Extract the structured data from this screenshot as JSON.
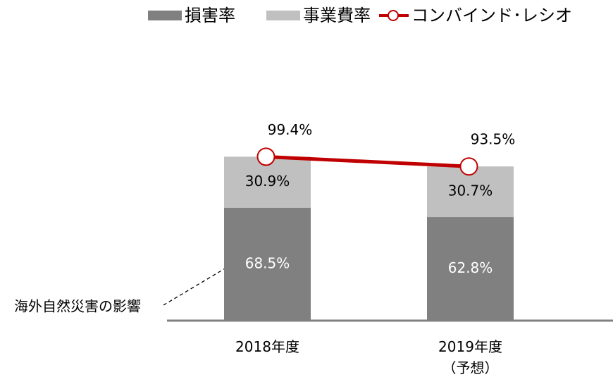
{
  "chart_data": {
    "type": "bar",
    "stacked": true,
    "categories": [
      "2018年度",
      "2019年度\n（予想）"
    ],
    "series": [
      {
        "name": "損害率",
        "color": "#808080",
        "values": [
          68.5,
          62.8
        ],
        "value_labels": [
          "68.5%",
          "62.8%"
        ],
        "label_color": "#ffffff"
      },
      {
        "name": "事業費率",
        "color": "#c0c0c0",
        "values": [
          30.9,
          30.7
        ],
        "value_labels": [
          "30.9%",
          "30.7%"
        ],
        "label_color": "#000000"
      },
      {
        "name": "コンバインド･レシオ",
        "type": "line",
        "color": "#c00000",
        "values": [
          99.4,
          93.5
        ],
        "value_labels": [
          "99.4%",
          "93.5%"
        ],
        "label_color": "#000000"
      }
    ],
    "annotations": [
      {
        "text": "海外自然災害の影響"
      }
    ],
    "legend": "top"
  }
}
